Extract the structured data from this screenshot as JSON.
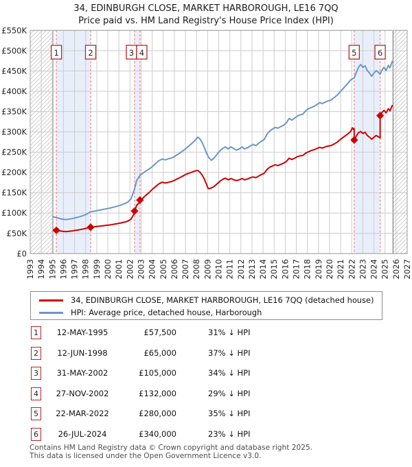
{
  "title": "34, EDINBURGH CLOSE, MARKET HARBOROUGH, LE16 7QQ",
  "subtitle": "Price paid vs. HM Land Registry's House Price Index (HPI)",
  "chart_data": {
    "type": "line",
    "title": "34, EDINBURGH CLOSE, MARKET HARBOROUGH, LE16 7QQ",
    "subtitle": "Price paid vs. HM Land Registry's House Price Index (HPI)",
    "xlim": [
      1993,
      2027
    ],
    "ylim_gbp_k": [
      0,
      550
    ],
    "grid": true,
    "x_axis": {
      "ticks": [
        1993,
        1994,
        1995,
        1996,
        1997,
        1998,
        1999,
        2000,
        2001,
        2002,
        2003,
        2004,
        2005,
        2006,
        2007,
        2008,
        2009,
        2010,
        2011,
        2012,
        2013,
        2014,
        2015,
        2016,
        2017,
        2018,
        2019,
        2020,
        2021,
        2022,
        2023,
        2024,
        2025,
        2026,
        2027
      ]
    },
    "y_axis": {
      "ticks_gbp_k": [
        0,
        50,
        100,
        150,
        200,
        250,
        300,
        350,
        400,
        450,
        500,
        550
      ],
      "labels": [
        "£0",
        "£50K",
        "£100K",
        "£150K",
        "£200K",
        "£250K",
        "£300K",
        "£350K",
        "£400K",
        "£450K",
        "£500K",
        "£550K"
      ]
    },
    "no_data_hatch_years": [
      [
        1993,
        1995.04
      ],
      [
        2025.72,
        2027
      ]
    ],
    "ownership_shading_years": [
      [
        1995.36,
        1998.45
      ],
      [
        2002.41,
        2002.9
      ],
      [
        2022.22,
        2024.56
      ]
    ],
    "colors": {
      "price_paid": "#cc0000",
      "hpi": "#6b95c9",
      "sale_dashed_line": "#f98080",
      "ownership_band": "#e9effa",
      "grid": "#cccccc",
      "plot_border": "#a0a0a0",
      "hatch": "#c6c6c6",
      "data_edge": "#666666",
      "badge_border": "#bb2222"
    },
    "series": [
      {
        "name": "34, EDINBURGH CLOSE, MARKET HARBOROUGH, LE16 7QQ (detached house)",
        "color": "#cc0000",
        "points_year_gbp_k": [
          [
            1995.04,
            58.5
          ],
          [
            1995.36,
            57.5
          ],
          [
            1995.6,
            56.2
          ],
          [
            1995.9,
            55
          ],
          [
            1996.2,
            54.4
          ],
          [
            1996.5,
            55
          ],
          [
            1996.8,
            56
          ],
          [
            1997.1,
            57.3
          ],
          [
            1997.4,
            58.6
          ],
          [
            1997.7,
            60.2
          ],
          [
            1998.0,
            62.1
          ],
          [
            1998.2,
            63.5
          ],
          [
            1998.45,
            65
          ],
          [
            1998.7,
            65.6
          ],
          [
            1999.0,
            66.9
          ],
          [
            1999.3,
            67.8
          ],
          [
            1999.6,
            68.8
          ],
          [
            2000.0,
            70
          ],
          [
            2000.3,
            71.3
          ],
          [
            2000.6,
            72.6
          ],
          [
            2000.9,
            74.1
          ],
          [
            2001.2,
            75.7
          ],
          [
            2001.5,
            77.6
          ],
          [
            2001.8,
            80.1
          ],
          [
            2002.1,
            85.2
          ],
          [
            2002.41,
            100.3
          ],
          [
            2002.41,
            105
          ],
          [
            2002.6,
            118.9
          ],
          [
            2002.9,
            127.5
          ],
          [
            2002.9,
            132
          ],
          [
            2003.1,
            135
          ],
          [
            2003.4,
            143
          ],
          [
            2003.7,
            150
          ],
          [
            2004.0,
            158
          ],
          [
            2004.3,
            165
          ],
          [
            2004.6,
            172
          ],
          [
            2004.9,
            176
          ],
          [
            2005.2,
            174
          ],
          [
            2005.5,
            176
          ],
          [
            2005.8,
            178
          ],
          [
            2006.1,
            182
          ],
          [
            2006.4,
            186
          ],
          [
            2006.7,
            190
          ],
          [
            2007.0,
            195
          ],
          [
            2007.3,
            198
          ],
          [
            2007.6,
            201
          ],
          [
            2007.9,
            204
          ],
          [
            2008.1,
            205
          ],
          [
            2008.3,
            201
          ],
          [
            2008.5,
            194
          ],
          [
            2008.7,
            184
          ],
          [
            2008.9,
            171
          ],
          [
            2009.05,
            160
          ],
          [
            2009.35,
            162
          ],
          [
            2009.6,
            166
          ],
          [
            2009.85,
            172
          ],
          [
            2010.1,
            178
          ],
          [
            2010.35,
            183
          ],
          [
            2010.6,
            186
          ],
          [
            2010.85,
            182
          ],
          [
            2011.1,
            185
          ],
          [
            2011.35,
            182
          ],
          [
            2011.6,
            180
          ],
          [
            2011.85,
            182
          ],
          [
            2012.1,
            185
          ],
          [
            2012.35,
            182
          ],
          [
            2012.6,
            184
          ],
          [
            2012.85,
            187
          ],
          [
            2013.1,
            189
          ],
          [
            2013.35,
            187
          ],
          [
            2013.6,
            191
          ],
          [
            2013.85,
            195
          ],
          [
            2014.1,
            198
          ],
          [
            2014.35,
            207
          ],
          [
            2014.6,
            213
          ],
          [
            2014.85,
            216
          ],
          [
            2015.1,
            219
          ],
          [
            2015.35,
            217
          ],
          [
            2015.6,
            220
          ],
          [
            2015.85,
            223
          ],
          [
            2016.1,
            227
          ],
          [
            2016.35,
            235
          ],
          [
            2016.6,
            232
          ],
          [
            2016.85,
            235
          ],
          [
            2017.1,
            239
          ],
          [
            2017.35,
            241
          ],
          [
            2017.6,
            242
          ],
          [
            2017.85,
            248
          ],
          [
            2018.1,
            251
          ],
          [
            2018.35,
            254
          ],
          [
            2018.6,
            256
          ],
          [
            2018.85,
            259
          ],
          [
            2019.1,
            262
          ],
          [
            2019.35,
            260
          ],
          [
            2019.6,
            263
          ],
          [
            2019.85,
            265
          ],
          [
            2020.1,
            266
          ],
          [
            2020.4,
            270
          ],
          [
            2020.7,
            275
          ],
          [
            2021.0,
            282
          ],
          [
            2021.3,
            288
          ],
          [
            2021.6,
            294
          ],
          [
            2021.9,
            301
          ],
          [
            2022.05,
            310
          ],
          [
            2022.15,
            306
          ],
          [
            2022.22,
            308
          ],
          [
            2022.22,
            280
          ],
          [
            2022.4,
            289
          ],
          [
            2022.6,
            298
          ],
          [
            2022.8,
            301
          ],
          [
            2023.0,
            296
          ],
          [
            2023.2,
            299
          ],
          [
            2023.4,
            291
          ],
          [
            2023.6,
            287
          ],
          [
            2023.8,
            282
          ],
          [
            2024.0,
            287
          ],
          [
            2024.2,
            291
          ],
          [
            2024.4,
            288
          ],
          [
            2024.56,
            285
          ],
          [
            2024.56,
            340
          ],
          [
            2024.7,
            347
          ],
          [
            2024.9,
            353
          ],
          [
            2025.1,
            347
          ],
          [
            2025.3,
            357
          ],
          [
            2025.45,
            352
          ],
          [
            2025.6,
            362
          ],
          [
            2025.68,
            366
          ]
        ]
      },
      {
        "name": "HPI: Average price, detached house, Harborough",
        "color": "#6b95c9",
        "points_year_gbp_k": [
          [
            1995.04,
            91
          ],
          [
            1995.3,
            89
          ],
          [
            1995.6,
            87
          ],
          [
            1995.9,
            85
          ],
          [
            1996.2,
            84
          ],
          [
            1996.5,
            85
          ],
          [
            1996.8,
            86.5
          ],
          [
            1997.1,
            88.5
          ],
          [
            1997.4,
            90.5
          ],
          [
            1997.7,
            93
          ],
          [
            1998.0,
            96
          ],
          [
            1998.2,
            99
          ],
          [
            1998.45,
            103
          ],
          [
            1998.7,
            104
          ],
          [
            1999.0,
            106
          ],
          [
            1999.3,
            107.5
          ],
          [
            1999.6,
            109
          ],
          [
            2000.0,
            111
          ],
          [
            2000.3,
            113
          ],
          [
            2000.6,
            115
          ],
          [
            2000.9,
            117.5
          ],
          [
            2001.2,
            120
          ],
          [
            2001.5,
            123
          ],
          [
            2001.8,
            127
          ],
          [
            2002.1,
            135
          ],
          [
            2002.41,
            159
          ],
          [
            2002.6,
            180
          ],
          [
            2002.9,
            193
          ],
          [
            2003.1,
            197
          ],
          [
            2003.4,
            203
          ],
          [
            2003.7,
            208
          ],
          [
            2004.0,
            214
          ],
          [
            2004.3,
            222
          ],
          [
            2004.6,
            229
          ],
          [
            2004.9,
            233
          ],
          [
            2005.2,
            231
          ],
          [
            2005.5,
            234
          ],
          [
            2005.8,
            236
          ],
          [
            2006.1,
            241
          ],
          [
            2006.4,
            246
          ],
          [
            2006.7,
            252
          ],
          [
            2007.0,
            258
          ],
          [
            2007.3,
            265
          ],
          [
            2007.6,
            272
          ],
          [
            2007.9,
            280
          ],
          [
            2008.1,
            287
          ],
          [
            2008.3,
            283
          ],
          [
            2008.5,
            274
          ],
          [
            2008.7,
            262
          ],
          [
            2008.9,
            248
          ],
          [
            2009.1,
            237
          ],
          [
            2009.35,
            230
          ],
          [
            2009.6,
            236
          ],
          [
            2009.85,
            245
          ],
          [
            2010.1,
            253
          ],
          [
            2010.35,
            259
          ],
          [
            2010.6,
            263
          ],
          [
            2010.85,
            258
          ],
          [
            2011.1,
            263
          ],
          [
            2011.35,
            259
          ],
          [
            2011.6,
            255
          ],
          [
            2011.85,
            258
          ],
          [
            2012.1,
            263
          ],
          [
            2012.35,
            258
          ],
          [
            2012.6,
            261
          ],
          [
            2012.85,
            265
          ],
          [
            2013.1,
            269
          ],
          [
            2013.35,
            266
          ],
          [
            2013.6,
            272
          ],
          [
            2013.85,
            277
          ],
          [
            2014.1,
            281
          ],
          [
            2014.35,
            294
          ],
          [
            2014.6,
            302
          ],
          [
            2014.85,
            307
          ],
          [
            2015.1,
            311
          ],
          [
            2015.35,
            309
          ],
          [
            2015.6,
            313
          ],
          [
            2015.85,
            316
          ],
          [
            2016.1,
            322
          ],
          [
            2016.35,
            333
          ],
          [
            2016.6,
            329
          ],
          [
            2016.85,
            334
          ],
          [
            2017.1,
            339
          ],
          [
            2017.35,
            342
          ],
          [
            2017.6,
            344
          ],
          [
            2017.85,
            352
          ],
          [
            2018.1,
            357
          ],
          [
            2018.35,
            360
          ],
          [
            2018.6,
            363
          ],
          [
            2018.85,
            367
          ],
          [
            2019.1,
            372
          ],
          [
            2019.35,
            370
          ],
          [
            2019.6,
            373
          ],
          [
            2019.85,
            376
          ],
          [
            2020.1,
            378
          ],
          [
            2020.4,
            384
          ],
          [
            2020.7,
            391
          ],
          [
            2021.0,
            400
          ],
          [
            2021.3,
            409
          ],
          [
            2021.6,
            418
          ],
          [
            2021.9,
            428
          ],
          [
            2022.22,
            433
          ],
          [
            2022.4,
            446
          ],
          [
            2022.6,
            459
          ],
          [
            2022.8,
            466
          ],
          [
            2023.0,
            459
          ],
          [
            2023.2,
            463
          ],
          [
            2023.4,
            451
          ],
          [
            2023.6,
            445
          ],
          [
            2023.8,
            437
          ],
          [
            2024.0,
            445
          ],
          [
            2024.2,
            451
          ],
          [
            2024.4,
            447
          ],
          [
            2024.56,
            442
          ],
          [
            2024.7,
            451
          ],
          [
            2024.9,
            459
          ],
          [
            2025.1,
            451
          ],
          [
            2025.3,
            464
          ],
          [
            2025.45,
            458
          ],
          [
            2025.6,
            470
          ],
          [
            2025.68,
            475
          ]
        ]
      }
    ],
    "sales": [
      {
        "label": "1",
        "year": 1995.36,
        "price_gbp_k": 57.5,
        "date": "12-MAY-1995",
        "price": "£57,500",
        "vs_hpi": "31% ↓ HPI",
        "box_dx": 0
      },
      {
        "label": "2",
        "year": 1998.45,
        "price_gbp_k": 65,
        "date": "12-JUN-1998",
        "price": "£65,000",
        "vs_hpi": "37% ↓ HPI",
        "box_dx": 0
      },
      {
        "label": "3",
        "year": 2002.41,
        "price_gbp_k": 105,
        "date": "31-MAY-2002",
        "price": "£105,000",
        "vs_hpi": "34% ↓ HPI",
        "box_dx": -4.5
      },
      {
        "label": "4",
        "year": 2002.9,
        "price_gbp_k": 132,
        "date": "27-NOV-2002",
        "price": "£132,000",
        "vs_hpi": "29% ↓ HPI",
        "box_dx": 2.6
      },
      {
        "label": "5",
        "year": 2022.22,
        "price_gbp_k": 280,
        "date": "22-MAR-2022",
        "price": "£280,000",
        "vs_hpi": "35% ↓ HPI",
        "box_dx": 0
      },
      {
        "label": "6",
        "year": 2024.56,
        "price_gbp_k": 340,
        "date": "26-JUL-2024",
        "price": "£340,000",
        "vs_hpi": "23% ↓ HPI",
        "box_dx": 0
      }
    ]
  },
  "legend": {
    "items": [
      {
        "label": "34, EDINBURGH CLOSE, MARKET HARBOROUGH, LE16 7QQ (detached house)",
        "color": "#cc0000"
      },
      {
        "label": "HPI: Average price, detached house, Harborough",
        "color": "#6b95c9"
      }
    ]
  },
  "footer": {
    "line1": "Contains HM Land Registry data © Crown copyright and database right 2025.",
    "line2": "This data is licensed under the Open Government Licence v3.0."
  }
}
